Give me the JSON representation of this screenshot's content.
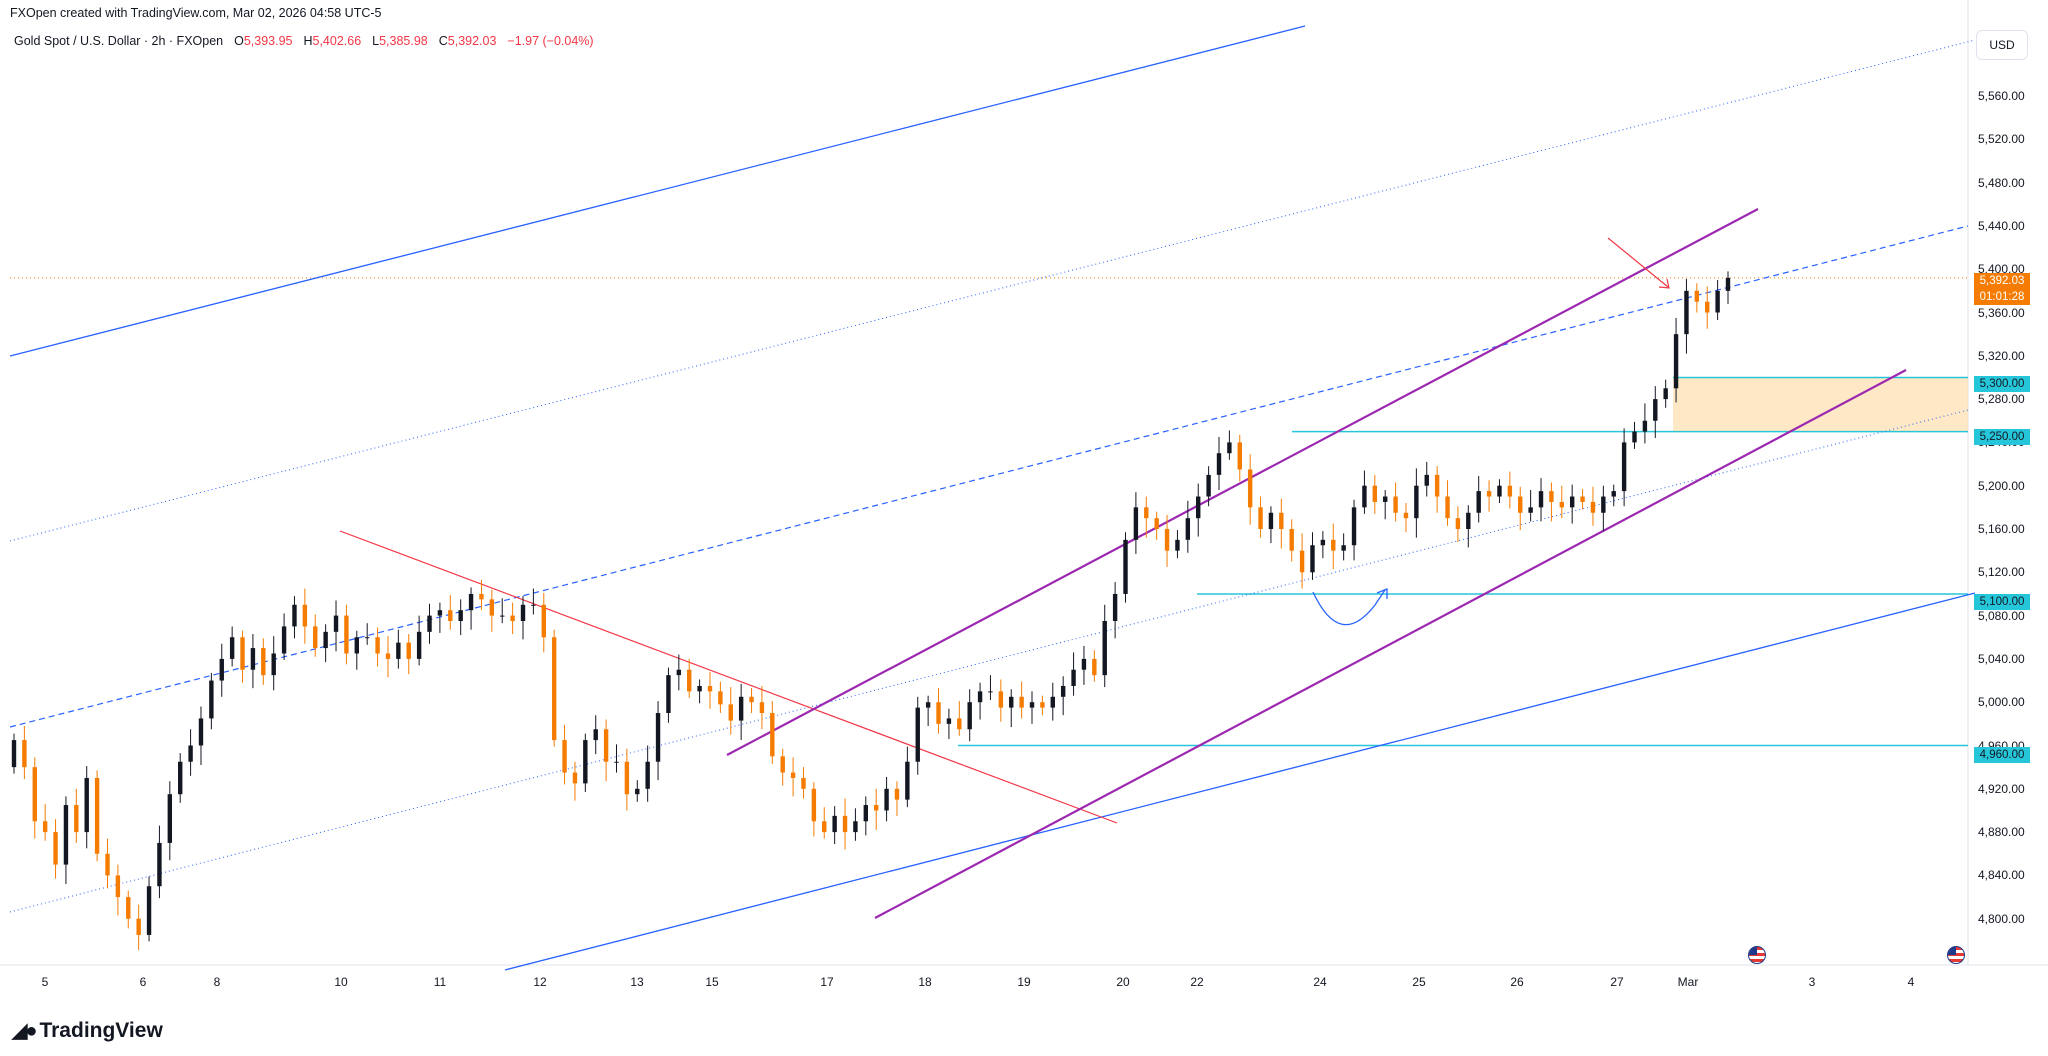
{
  "header": {
    "credit": "FXOpen created with TradingView.com, Mar 02, 2026 04:58 UTC-5"
  },
  "symbol": {
    "name": "Gold Spot / U.S. Dollar · 2h · FXOpen",
    "open_label": "O",
    "open": "5,393.95",
    "high_label": "H",
    "high": "5,402.66",
    "low_label": "L",
    "low": "5,385.98",
    "close_label": "C",
    "close": "5,392.03",
    "change": "−1.97 (−0.04%)"
  },
  "currency_button": "USD",
  "price_axis": [
    "5,560.00",
    "5,520.00",
    "5,480.00",
    "5,440.00",
    "5,400.00",
    "5,360.00",
    "5,320.00",
    "5,280.00",
    "5,240.00",
    "5,200.00",
    "5,160.00",
    "5,120.00",
    "5,080.00",
    "5,040.00",
    "5,000.00",
    "4,960.00",
    "4,920.00",
    "4,880.00",
    "4,840.00",
    "4,800.00"
  ],
  "date_axis": [
    "5",
    "6",
    "8",
    "10",
    "11",
    "12",
    "13",
    "15",
    "17",
    "18",
    "19",
    "20",
    "22",
    "24",
    "25",
    "26",
    "27",
    "Mar",
    "3",
    "4"
  ],
  "tags": {
    "current_price": "5,392.03",
    "countdown": "01:01:28",
    "level_5300": "5,300.00",
    "level_5250": "5,250.00",
    "level_5100": "5,100.00",
    "level_4960": "4,960.00"
  },
  "brand": {
    "logo_text": "TradingView"
  },
  "colors": {
    "bull": "#131722",
    "bear": "#f57c00",
    "channel": "#9c27b0",
    "trend_blue": "#2962ff",
    "downtrend": "#f23645",
    "level": "#26c6da",
    "zone": "#ffe0b2"
  },
  "chart_data": {
    "type": "candlestick",
    "symbol": "XAUUSD",
    "timeframe": "2h",
    "ylim": [
      4780,
      5600
    ],
    "y_ticks": [
      4800,
      4840,
      4880,
      4920,
      4960,
      5000,
      5040,
      5080,
      5120,
      5160,
      5200,
      5240,
      5280,
      5320,
      5360,
      5400,
      5440,
      5480,
      5520,
      5560
    ],
    "x_labels": [
      "5",
      "6",
      "8",
      "10",
      "11",
      "12",
      "13",
      "15",
      "17",
      "18",
      "19",
      "20",
      "22",
      "24",
      "25",
      "26",
      "27",
      "Mar",
      "3",
      "4"
    ],
    "key_levels": [
      5300,
      5250,
      5100,
      4960
    ],
    "current_price": 5392.03,
    "ohlc_last": {
      "open": 5393.95,
      "high": 5402.66,
      "low": 5385.98,
      "close": 5392.03
    },
    "candles_close": [
      4965,
      4940,
      4890,
      4880,
      4850,
      4905,
      4880,
      4930,
      4860,
      4840,
      4820,
      4800,
      4785,
      4830,
      4870,
      4915,
      4945,
      4960,
      4985,
      5020,
      5040,
      5060,
      5030,
      5050,
      5025,
      5045,
      5070,
      5090,
      5070,
      5050,
      5065,
      5080,
      5045,
      5060,
      5060,
      5045,
      5040,
      5055,
      5040,
      5065,
      5080,
      5085,
      5075,
      5085,
      5100,
      5095,
      5080,
      5080,
      5075,
      5090,
      5090,
      5060,
      4965,
      4935,
      4925,
      4965,
      4975,
      4945,
      4945,
      4915,
      4920,
      4945,
      4990,
      5025,
      5030,
      5010,
      5015,
      5010,
      4998,
      4983,
      5005,
      5000,
      4990,
      4950,
      4935,
      4930,
      4920,
      4890,
      4880,
      4895,
      4880,
      4890,
      4905,
      4900,
      4920,
      4910,
      4945,
      4995,
      5000,
      4980,
      4985,
      4975,
      5000,
      5010,
      5010,
      4995,
      5005,
      4995,
      5000,
      4995,
      5005,
      5015,
      5030,
      5040,
      5025,
      5075,
      5100,
      5150,
      5180,
      5170,
      5160,
      5140,
      5150,
      5170,
      5190,
      5210,
      5230,
      5240,
      5215,
      5180,
      5160,
      5175,
      5160,
      5140,
      5120,
      5145,
      5150,
      5140,
      5145,
      5180,
      5200,
      5185,
      5190,
      5175,
      5170,
      5200,
      5210,
      5190,
      5170,
      5160,
      5175,
      5195,
      5190,
      5200,
      5190,
      5175,
      5180,
      5195,
      5185,
      5180,
      5190,
      5185,
      5175,
      5190,
      5195,
      5240,
      5250,
      5260,
      5280,
      5290,
      5340,
      5380,
      5370,
      5360,
      5380,
      5392
    ],
    "annotations": [
      "Ascending channel (purple)",
      "Long-term rising channel (blue)",
      "Descending trendline (red)",
      "Demand zone 5,250.00 – 5,300.00"
    ]
  }
}
